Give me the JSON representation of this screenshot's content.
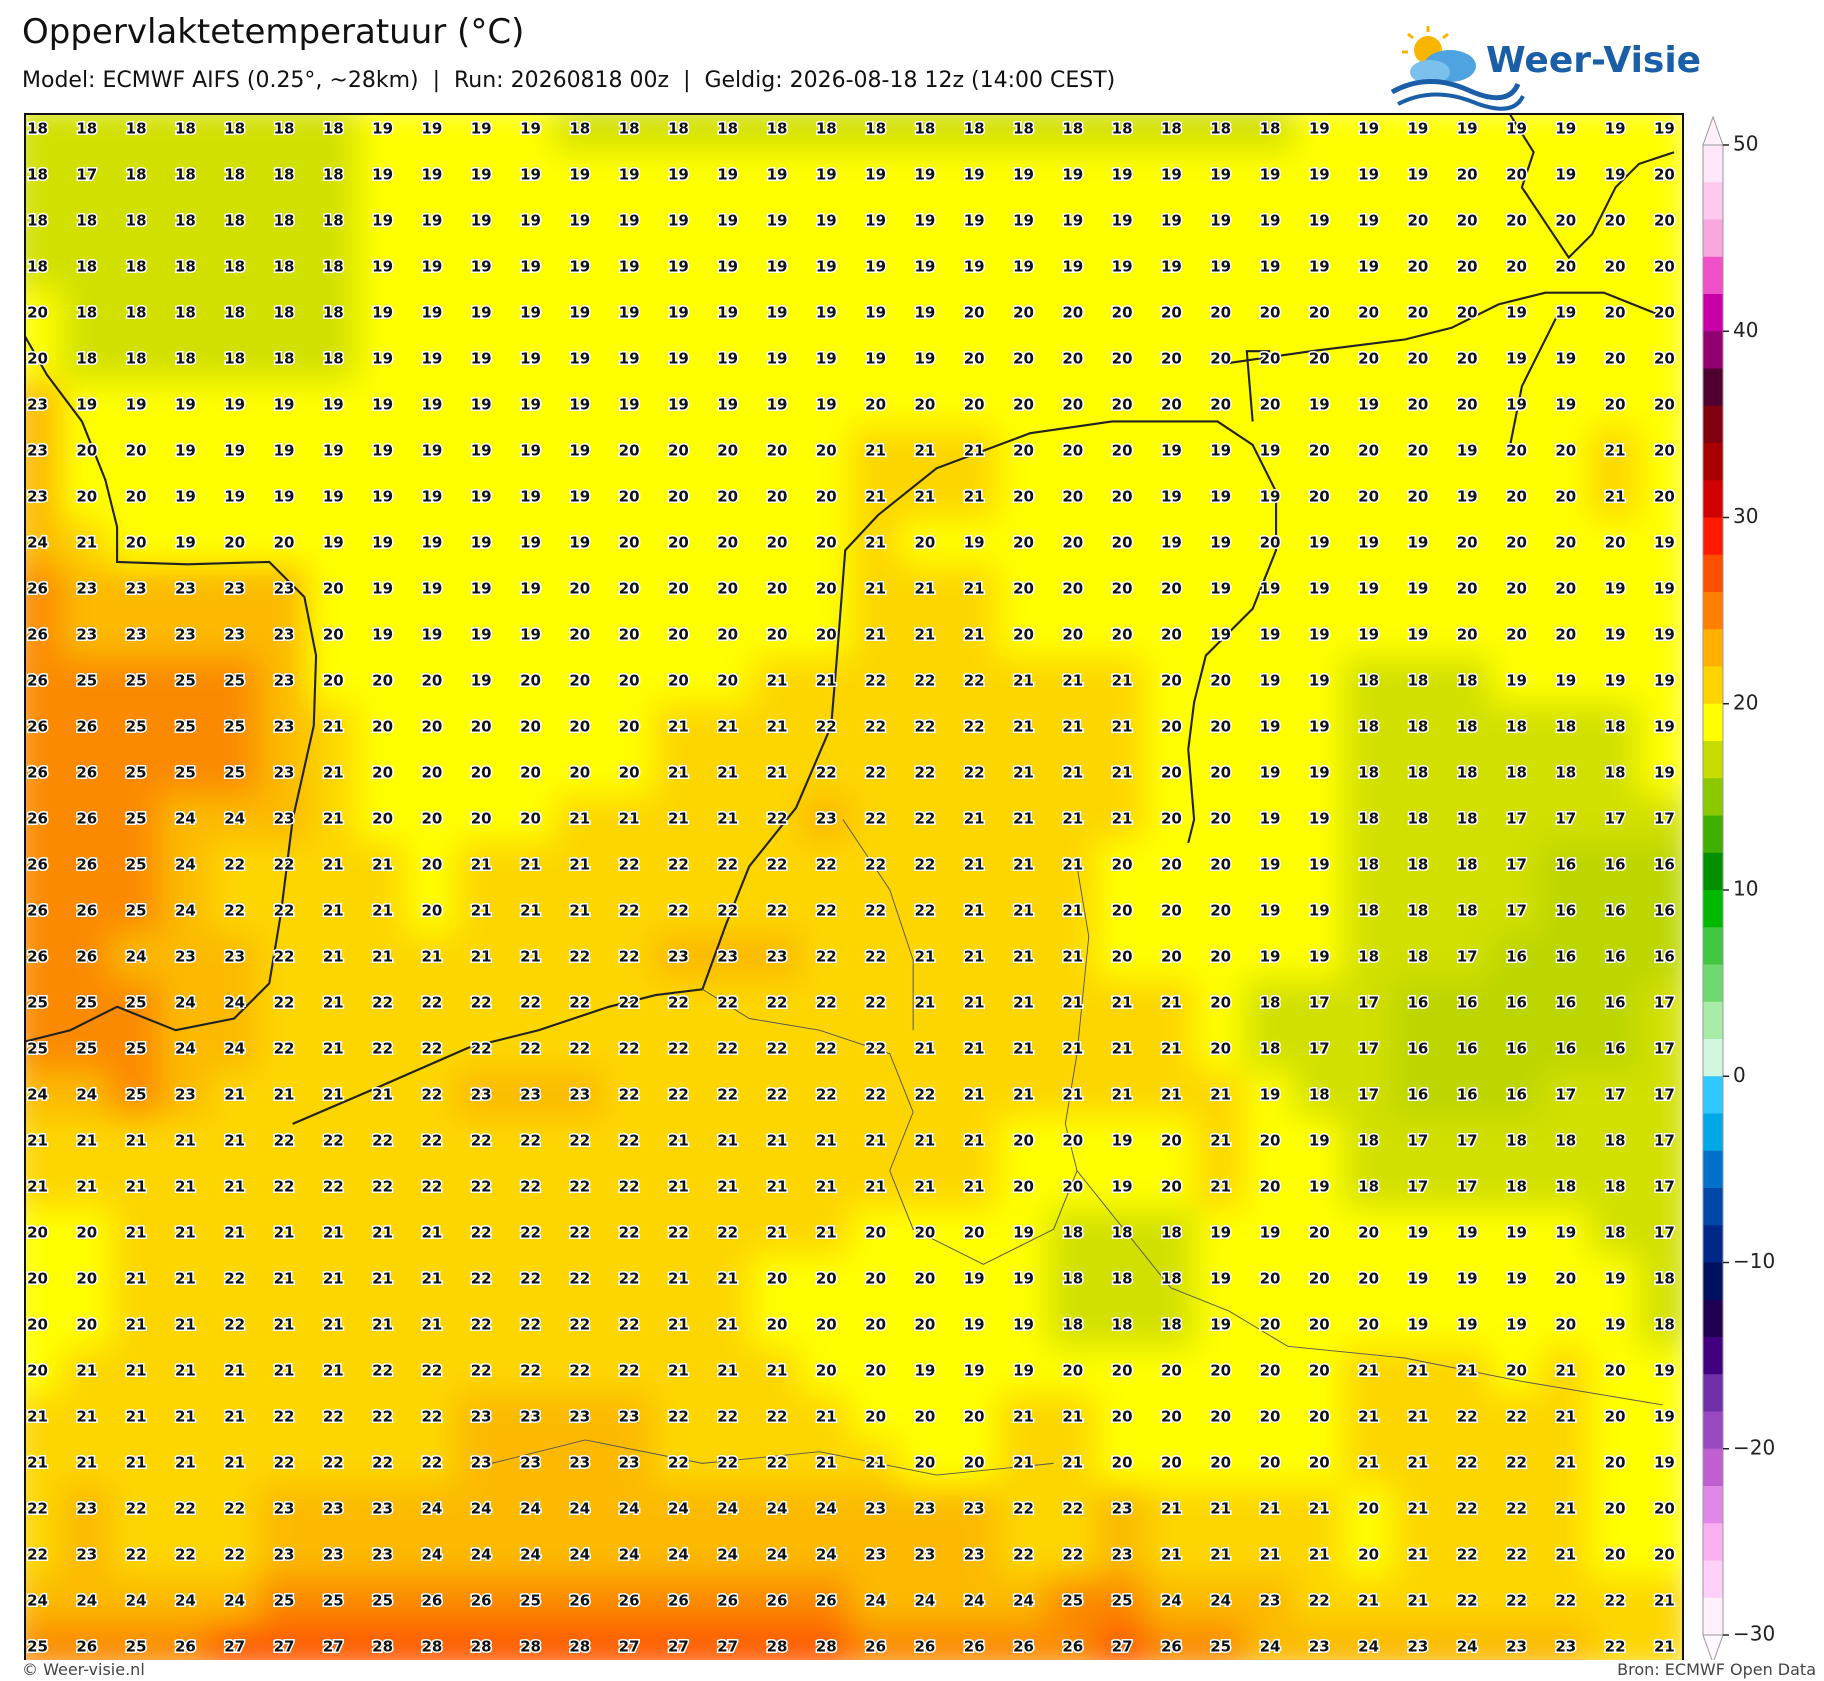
{
  "header": {
    "title": "Oppervlaktetemperatuur (°C)",
    "subtitle": "Model: ECMWF AIFS (0.25°, ~28km)  |  Run: 20260818 00z  |  Geldig: 2026-08-18 12z (14:00 CEST)"
  },
  "logo": "Weer-Visie",
  "grid": {
    "rows": [
      [
        18,
        18,
        18,
        18,
        18,
        18,
        18,
        19,
        19,
        19,
        19,
        18,
        18,
        18,
        18,
        18,
        18,
        18,
        18,
        18,
        18,
        18,
        18,
        18,
        18,
        18,
        19,
        19,
        19,
        19,
        19,
        19,
        19,
        19
      ],
      [
        18,
        17,
        18,
        18,
        18,
        18,
        18,
        19,
        19,
        19,
        19,
        19,
        19,
        19,
        19,
        19,
        19,
        19,
        19,
        19,
        19,
        19,
        19,
        19,
        19,
        19,
        19,
        19,
        19,
        20,
        20,
        19,
        19,
        20
      ],
      [
        18,
        18,
        18,
        18,
        18,
        18,
        18,
        19,
        19,
        19,
        19,
        19,
        19,
        19,
        19,
        19,
        19,
        19,
        19,
        19,
        19,
        19,
        19,
        19,
        19,
        19,
        19,
        19,
        20,
        20,
        20,
        20,
        20,
        20
      ],
      [
        18,
        18,
        18,
        18,
        18,
        18,
        18,
        19,
        19,
        19,
        19,
        19,
        19,
        19,
        19,
        19,
        19,
        19,
        19,
        19,
        19,
        19,
        19,
        19,
        19,
        19,
        19,
        19,
        20,
        20,
        20,
        20,
        20,
        20
      ],
      [
        20,
        18,
        18,
        18,
        18,
        18,
        18,
        19,
        19,
        19,
        19,
        19,
        19,
        19,
        19,
        19,
        19,
        19,
        19,
        20,
        20,
        20,
        20,
        20,
        20,
        20,
        20,
        20,
        20,
        20,
        19,
        19,
        20,
        20
      ],
      [
        20,
        18,
        18,
        18,
        18,
        18,
        18,
        19,
        19,
        19,
        19,
        19,
        19,
        19,
        19,
        19,
        19,
        19,
        19,
        20,
        20,
        20,
        20,
        20,
        20,
        20,
        20,
        20,
        20,
        20,
        19,
        19,
        20,
        20
      ],
      [
        23,
        19,
        19,
        19,
        19,
        19,
        19,
        19,
        19,
        19,
        19,
        19,
        19,
        19,
        19,
        19,
        19,
        20,
        20,
        20,
        20,
        20,
        20,
        20,
        20,
        20,
        19,
        19,
        20,
        20,
        19,
        19,
        20,
        20
      ],
      [
        23,
        20,
        20,
        19,
        19,
        19,
        19,
        19,
        19,
        19,
        19,
        19,
        20,
        20,
        20,
        20,
        20,
        21,
        21,
        21,
        20,
        20,
        20,
        19,
        19,
        19,
        20,
        20,
        20,
        19,
        20,
        20,
        21,
        20
      ],
      [
        23,
        20,
        20,
        19,
        19,
        19,
        19,
        19,
        19,
        19,
        19,
        19,
        20,
        20,
        20,
        20,
        20,
        21,
        21,
        21,
        20,
        20,
        20,
        19,
        19,
        19,
        20,
        20,
        20,
        19,
        20,
        20,
        21,
        20
      ],
      [
        24,
        21,
        20,
        19,
        20,
        20,
        19,
        19,
        19,
        19,
        19,
        19,
        20,
        20,
        20,
        20,
        20,
        21,
        20,
        19,
        20,
        20,
        20,
        19,
        19,
        20,
        19,
        19,
        19,
        20,
        20,
        20,
        20,
        19
      ],
      [
        26,
        23,
        23,
        23,
        23,
        23,
        20,
        19,
        19,
        19,
        19,
        20,
        20,
        20,
        20,
        20,
        20,
        21,
        21,
        21,
        20,
        20,
        20,
        20,
        19,
        19,
        19,
        19,
        19,
        20,
        20,
        20,
        19,
        19
      ],
      [
        26,
        23,
        23,
        23,
        23,
        23,
        20,
        19,
        19,
        19,
        19,
        20,
        20,
        20,
        20,
        20,
        20,
        21,
        21,
        21,
        20,
        20,
        20,
        20,
        19,
        19,
        19,
        19,
        19,
        20,
        20,
        20,
        19,
        19
      ],
      [
        26,
        25,
        25,
        25,
        25,
        23,
        20,
        20,
        20,
        19,
        20,
        20,
        20,
        20,
        20,
        21,
        21,
        22,
        22,
        22,
        21,
        21,
        21,
        20,
        20,
        19,
        19,
        18,
        18,
        18,
        19,
        19,
        19,
        19
      ],
      [
        26,
        26,
        25,
        25,
        25,
        23,
        21,
        20,
        20,
        20,
        20,
        20,
        20,
        21,
        21,
        21,
        22,
        22,
        22,
        22,
        21,
        21,
        21,
        20,
        20,
        19,
        19,
        18,
        18,
        18,
        18,
        18,
        18,
        19
      ],
      [
        26,
        26,
        25,
        25,
        25,
        23,
        21,
        20,
        20,
        20,
        20,
        20,
        20,
        21,
        21,
        21,
        22,
        22,
        22,
        22,
        21,
        21,
        21,
        20,
        20,
        19,
        19,
        18,
        18,
        18,
        18,
        18,
        18,
        19
      ],
      [
        26,
        26,
        25,
        24,
        24,
        23,
        21,
        20,
        20,
        20,
        20,
        21,
        21,
        21,
        21,
        22,
        23,
        22,
        22,
        21,
        21,
        21,
        21,
        20,
        20,
        19,
        19,
        18,
        18,
        18,
        17,
        17,
        17,
        17
      ],
      [
        26,
        26,
        25,
        24,
        22,
        22,
        21,
        21,
        20,
        21,
        21,
        21,
        22,
        22,
        22,
        22,
        22,
        22,
        22,
        21,
        21,
        21,
        20,
        20,
        20,
        19,
        19,
        18,
        18,
        18,
        17,
        16,
        16,
        16
      ],
      [
        26,
        26,
        25,
        24,
        22,
        22,
        21,
        21,
        20,
        21,
        21,
        21,
        22,
        22,
        22,
        22,
        22,
        22,
        22,
        21,
        21,
        21,
        20,
        20,
        20,
        19,
        19,
        18,
        18,
        18,
        17,
        16,
        16,
        16
      ],
      [
        26,
        26,
        24,
        23,
        23,
        22,
        21,
        21,
        21,
        21,
        21,
        22,
        22,
        23,
        23,
        23,
        22,
        22,
        21,
        21,
        21,
        21,
        20,
        20,
        20,
        19,
        19,
        18,
        18,
        17,
        16,
        16,
        16,
        16
      ],
      [
        25,
        25,
        25,
        24,
        24,
        22,
        21,
        22,
        22,
        22,
        22,
        22,
        22,
        22,
        22,
        22,
        22,
        22,
        21,
        21,
        21,
        21,
        21,
        21,
        20,
        18,
        17,
        17,
        16,
        16,
        16,
        16,
        16,
        17
      ],
      [
        25,
        25,
        25,
        24,
        24,
        22,
        21,
        22,
        22,
        22,
        22,
        22,
        22,
        22,
        22,
        22,
        22,
        22,
        21,
        21,
        21,
        21,
        21,
        21,
        20,
        18,
        17,
        17,
        16,
        16,
        16,
        16,
        16,
        17
      ],
      [
        24,
        24,
        25,
        23,
        21,
        21,
        21,
        21,
        22,
        23,
        23,
        23,
        22,
        22,
        22,
        22,
        22,
        22,
        22,
        21,
        21,
        21,
        21,
        21,
        21,
        19,
        18,
        17,
        16,
        16,
        16,
        17,
        17,
        17
      ],
      [
        21,
        21,
        21,
        21,
        21,
        22,
        22,
        22,
        22,
        22,
        22,
        22,
        22,
        21,
        21,
        21,
        21,
        21,
        21,
        21,
        20,
        20,
        19,
        20,
        21,
        20,
        19,
        18,
        17,
        17,
        18,
        18,
        18,
        17
      ],
      [
        21,
        21,
        21,
        21,
        21,
        22,
        22,
        22,
        22,
        22,
        22,
        22,
        22,
        21,
        21,
        21,
        21,
        21,
        21,
        21,
        20,
        20,
        19,
        20,
        21,
        20,
        19,
        18,
        17,
        17,
        18,
        18,
        18,
        17
      ],
      [
        20,
        20,
        21,
        21,
        21,
        21,
        21,
        21,
        21,
        22,
        22,
        22,
        22,
        22,
        22,
        21,
        21,
        20,
        20,
        20,
        19,
        18,
        18,
        18,
        19,
        19,
        20,
        20,
        19,
        19,
        19,
        19,
        18,
        17
      ],
      [
        20,
        20,
        21,
        21,
        22,
        21,
        21,
        21,
        21,
        22,
        22,
        22,
        22,
        21,
        21,
        20,
        20,
        20,
        20,
        19,
        19,
        18,
        18,
        18,
        19,
        20,
        20,
        20,
        19,
        19,
        19,
        20,
        19,
        18
      ],
      [
        20,
        20,
        21,
        21,
        22,
        21,
        21,
        21,
        21,
        22,
        22,
        22,
        22,
        21,
        21,
        20,
        20,
        20,
        20,
        19,
        19,
        18,
        18,
        18,
        19,
        20,
        20,
        20,
        19,
        19,
        19,
        20,
        19,
        18
      ],
      [
        20,
        21,
        21,
        21,
        21,
        21,
        21,
        22,
        22,
        22,
        22,
        22,
        22,
        21,
        21,
        21,
        20,
        20,
        19,
        19,
        19,
        20,
        20,
        20,
        20,
        20,
        20,
        21,
        21,
        21,
        20,
        21,
        20,
        19
      ],
      [
        21,
        21,
        21,
        21,
        21,
        22,
        22,
        22,
        22,
        23,
        23,
        23,
        23,
        22,
        22,
        22,
        21,
        20,
        20,
        20,
        21,
        21,
        20,
        20,
        20,
        20,
        20,
        21,
        21,
        22,
        22,
        21,
        20,
        19
      ],
      [
        21,
        21,
        21,
        21,
        21,
        22,
        22,
        22,
        22,
        23,
        23,
        23,
        23,
        22,
        22,
        22,
        21,
        21,
        20,
        20,
        21,
        21,
        20,
        20,
        20,
        20,
        20,
        21,
        21,
        22,
        22,
        21,
        20,
        19
      ],
      [
        22,
        23,
        22,
        22,
        22,
        23,
        23,
        23,
        24,
        24,
        24,
        24,
        24,
        24,
        24,
        24,
        24,
        23,
        23,
        23,
        22,
        22,
        23,
        21,
        21,
        21,
        21,
        20,
        21,
        22,
        22,
        21,
        20,
        20
      ],
      [
        22,
        23,
        22,
        22,
        22,
        23,
        23,
        23,
        24,
        24,
        24,
        24,
        24,
        24,
        24,
        24,
        24,
        23,
        23,
        23,
        22,
        22,
        23,
        21,
        21,
        21,
        21,
        20,
        21,
        22,
        22,
        21,
        20,
        20
      ],
      [
        24,
        24,
        24,
        24,
        24,
        25,
        25,
        25,
        26,
        26,
        25,
        26,
        26,
        26,
        26,
        26,
        26,
        24,
        24,
        24,
        24,
        25,
        25,
        24,
        24,
        23,
        22,
        21,
        21,
        22,
        22,
        22,
        22,
        21
      ],
      [
        25,
        26,
        25,
        26,
        27,
        27,
        27,
        28,
        28,
        28,
        28,
        28,
        27,
        27,
        27,
        28,
        28,
        26,
        26,
        26,
        26,
        26,
        27,
        26,
        25,
        24,
        23,
        24,
        23,
        24,
        23,
        23,
        22,
        21
      ]
    ]
  },
  "colorbar": {
    "ticks": [
      50,
      40,
      30,
      20,
      10,
      0,
      {
        "value": -10,
        "label": "−10"
      },
      {
        "value": -20,
        "label": "−20"
      },
      {
        "value": -30,
        "label": "−30"
      }
    ]
  },
  "footer": {
    "left": "© Weer-visie.nl",
    "right": "Bron: ECMWF Open Data"
  }
}
